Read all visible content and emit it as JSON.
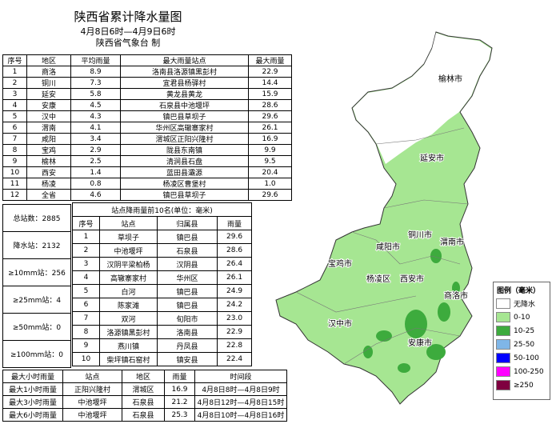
{
  "title": "陕西省累计降水量图",
  "subtitle": "4月8日6时—4月9日6时",
  "issuer": "陕西省气象台 制",
  "region_table": {
    "header": [
      "序号",
      "地区",
      "平均雨量",
      "最大雨量站点",
      "最大雨量"
    ],
    "rows": [
      [
        "1",
        "商洛",
        "8.9",
        "洛南县洛源镇黑彭村",
        "22.9"
      ],
      [
        "2",
        "铜川",
        "7.3",
        "宜君县杨驿村",
        "14.4"
      ],
      [
        "3",
        "延安",
        "5.8",
        "黄龙县黄龙",
        "15.9"
      ],
      [
        "4",
        "安康",
        "4.5",
        "石泉县中池堰坪",
        "28.6"
      ],
      [
        "5",
        "汉中",
        "4.3",
        "镇巴县草坝子",
        "29.6"
      ],
      [
        "6",
        "渭南",
        "4.1",
        "华州区高辙寨家村",
        "26.1"
      ],
      [
        "7",
        "咸阳",
        "3.4",
        "渭城区正阳兴隆村",
        "16.9"
      ],
      [
        "8",
        "宝鸡",
        "2.9",
        "陇县东南镇",
        "9.9"
      ],
      [
        "9",
        "榆林",
        "2.5",
        "清涧县石盘",
        "9.5"
      ],
      [
        "10",
        "西安",
        "1.4",
        "蓝田县灞源",
        "20.4"
      ],
      [
        "11",
        "杨凌",
        "0.8",
        "杨凌区曹堡村",
        "1.0"
      ],
      [
        "12",
        "全省",
        "4.6",
        "镇巴县草坝子",
        "29.6"
      ]
    ]
  },
  "station_stats": [
    "总站数：2885",
    "降水站：2132",
    "≥10mm站：256",
    "≥25mm站：4",
    "≥50mm站：0",
    "≥100mm站：0"
  ],
  "top10_table": {
    "title": "站点降雨量前10名(单位：毫米)",
    "header": [
      "序号",
      "站点",
      "归属县",
      "雨量"
    ],
    "rows": [
      [
        "1",
        "草坝子",
        "镇巴县",
        "29.6"
      ],
      [
        "2",
        "中池堰坪",
        "石泉县",
        "28.6"
      ],
      [
        "3",
        "汉阴平梁柏杨",
        "汉阴县",
        "26.4"
      ],
      [
        "4",
        "高辙寨家村",
        "华州区",
        "26.1"
      ],
      [
        "5",
        "白河",
        "镇巴县",
        "24.9"
      ],
      [
        "6",
        "陈家滩",
        "镇巴县",
        "24.2"
      ],
      [
        "7",
        "双河",
        "旬阳市",
        "23.0"
      ],
      [
        "8",
        "洛源镇黑彭村",
        "洛南县",
        "22.9"
      ],
      [
        "9",
        "燕川镇",
        "丹凤县",
        "22.8"
      ],
      [
        "10",
        "柴坪镇石窑村",
        "镇安县",
        "22.4"
      ]
    ]
  },
  "hourly_table": {
    "header": [
      "最大小时雨量",
      "站点",
      "地区",
      "雨量",
      "时间段"
    ],
    "rows": [
      [
        "最大1小时雨量",
        "正阳兴隆村",
        "渭城区",
        "16.9",
        "4月8日8时—4月8日9时"
      ],
      [
        "最大3小时雨量",
        "中池堰坪",
        "石泉县",
        "21.2",
        "4月8日12时—4月8日15时"
      ],
      [
        "最大6小时雨量",
        "中池堰坪",
        "石泉县",
        "25.3",
        "4月8日10时—4月8日16时"
      ]
    ]
  },
  "map_labels": [
    "榆林市",
    "延安市",
    "铜川市",
    "渭南市",
    "咸阳市",
    "宝鸡市",
    "杨凌区",
    "西安市",
    "商洛市",
    "汉中市",
    "安康市"
  ],
  "legend": {
    "title": "图例（毫米）",
    "items": [
      {
        "label": "无降水",
        "color": "#ffffff"
      },
      {
        "label": "0-10",
        "color": "#a6e692"
      },
      {
        "label": "10-25",
        "color": "#3dab3d"
      },
      {
        "label": "25-50",
        "color": "#7fb6e8"
      },
      {
        "label": "50-100",
        "color": "#0000ff"
      },
      {
        "label": "100-250",
        "color": "#ff00ff"
      },
      {
        "label": "≥250",
        "color": "#7f0040"
      }
    ]
  }
}
